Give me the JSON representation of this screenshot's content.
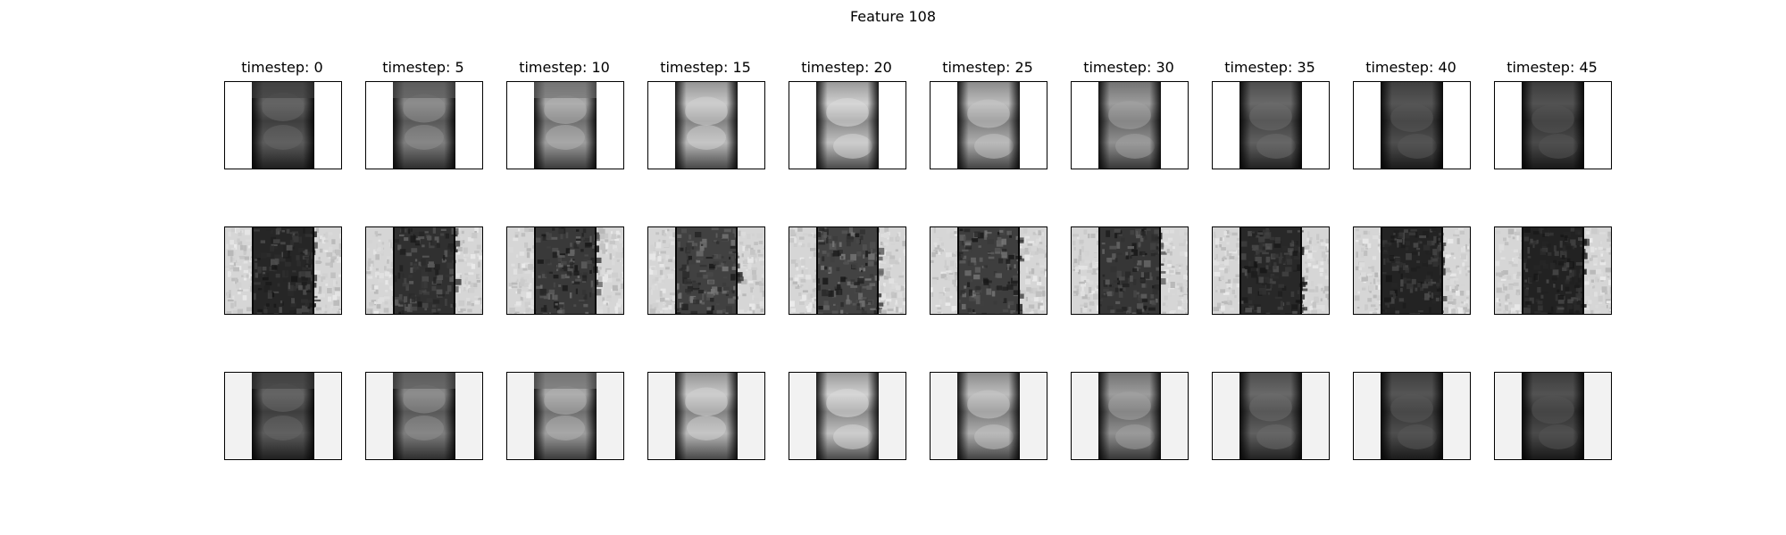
{
  "figure": {
    "title": "Feature 108",
    "columns": [
      "timestep: 0",
      "timestep: 5",
      "timestep: 10",
      "timestep: 15",
      "timestep: 20",
      "timestep: 25",
      "timestep: 30",
      "timestep: 35",
      "timestep: 40",
      "timestep: 45"
    ],
    "rows": 3,
    "row_content": [
      "smooth-brightness-blob",
      "noisy-texture",
      "smooth-brightness-blob-light-bg"
    ],
    "brightness_by_column": [
      0.25,
      0.45,
      0.62,
      0.78,
      0.82,
      0.72,
      0.55,
      0.28,
      0.18,
      0.16
    ],
    "colors": {
      "border": "#000000",
      "background_row1": "#ffffff",
      "background_row3": "#f2f2f2"
    }
  }
}
